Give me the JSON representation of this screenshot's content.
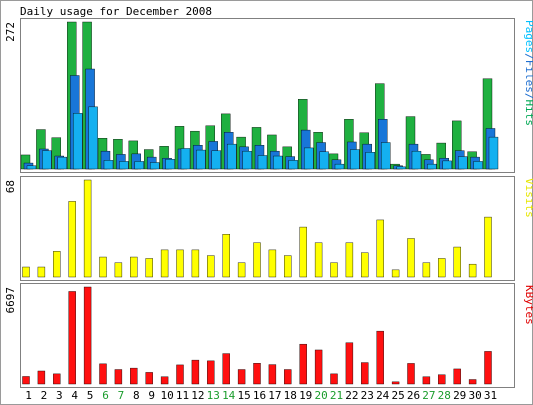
{
  "chart_data": {
    "type": "bar",
    "title": "Daily usage for December 2008",
    "categories": [
      "1",
      "2",
      "3",
      "4",
      "5",
      "6",
      "7",
      "8",
      "9",
      "10",
      "11",
      "12",
      "13",
      "14",
      "15",
      "16",
      "17",
      "18",
      "19",
      "20",
      "21",
      "22",
      "23",
      "24",
      "25",
      "26",
      "27",
      "28",
      "29",
      "30",
      "31"
    ],
    "weekend_days": [
      "6",
      "7",
      "13",
      "14",
      "20",
      "21",
      "27",
      "28"
    ],
    "grid": false,
    "panels": [
      {
        "id": "hits-files-pages",
        "max_label": "272",
        "ymax": 272,
        "legend_parts": [
          {
            "text": "Pages",
            "color": "#00c0ff"
          },
          {
            "text": "/",
            "color": "#1f6fd0"
          },
          {
            "text": "Files",
            "color": "#1f6fd0"
          },
          {
            "text": "/",
            "color": "#1f6fd0"
          },
          {
            "text": "Hits",
            "color": "#00a854"
          }
        ],
        "series": [
          {
            "name": "Hits",
            "color": "#1fb040",
            "values": [
              26,
              73,
              58,
              272,
              272,
              57,
              55,
              52,
              36,
              42,
              79,
              70,
              80,
              102,
              59,
              77,
              63,
              41,
              129,
              68,
              28,
              92,
              67,
              158,
              9,
              97,
              27,
              48,
              89,
              32,
              167
            ]
          },
          {
            "name": "Files",
            "color": "#1876d8",
            "values": [
              11,
              37,
              24,
              173,
              185,
              33,
              27,
              28,
              22,
              20,
              37,
              44,
              51,
              68,
              41,
              44,
              33,
              23,
              72,
              49,
              17,
              50,
              46,
              92,
              6,
              46,
              17,
              20,
              34,
              22,
              75
            ]
          },
          {
            "name": "Pages",
            "color": "#14b0f0",
            "values": [
              6,
              34,
              22,
              103,
              115,
              16,
              14,
              14,
              12,
              18,
              38,
              35,
              34,
              46,
              33,
              25,
              24,
              16,
              39,
              32,
              9,
              36,
              31,
              49,
              4,
              33,
              9,
              15,
              23,
              14,
              59
            ]
          }
        ]
      },
      {
        "id": "visits",
        "max_label": "68",
        "ymax": 68,
        "legend_parts": [
          {
            "text": "Visits",
            "color": "#e6e600"
          }
        ],
        "series": [
          {
            "name": "Visits",
            "color": "#ffff00",
            "values": [
              7,
              7,
              18,
              53,
              68,
              14,
              10,
              14,
              13,
              19,
              19,
              19,
              15,
              30,
              10,
              24,
              19,
              15,
              35,
              24,
              10,
              24,
              17,
              40,
              5,
              27,
              10,
              13,
              21,
              9,
              42
            ]
          }
        ]
      },
      {
        "id": "kbytes",
        "max_label": "6697",
        "ymax": 6697,
        "legend_parts": [
          {
            "text": "KBytes",
            "color": "#e00000"
          }
        ],
        "series": [
          {
            "name": "KBytes",
            "color": "#ff1010",
            "values": [
              520,
              898,
              700,
              6389,
              6697,
              1392,
              1000,
              1097,
              800,
              500,
              1318,
              1650,
              1598,
              2100,
              1000,
              1430,
              1340,
              1000,
              2750,
              2350,
              700,
              2850,
              1480,
              3650,
              150,
              1420,
              500,
              640,
              1040,
              310,
              2250
            ]
          }
        ]
      }
    ]
  }
}
